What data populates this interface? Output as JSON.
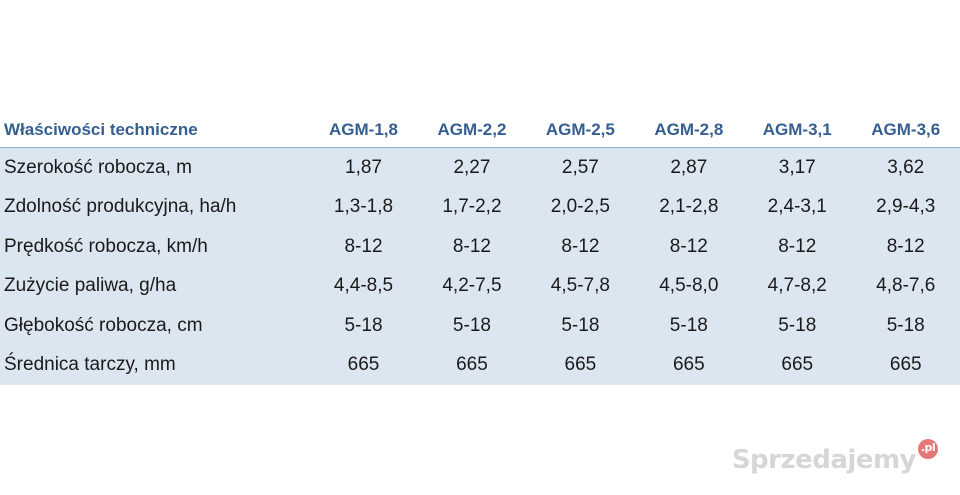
{
  "table": {
    "header": {
      "label": "Właściwości techniczne",
      "models": [
        "AGM-1,8",
        "AGM-2,2",
        "AGM-2,5",
        "AGM-2,8",
        "AGM-3,1",
        "AGM-3,6"
      ]
    },
    "rows": [
      {
        "label": "Szerokość robocza, m",
        "values": [
          "1,87",
          "2,27",
          "2,57",
          "2,87",
          "3,17",
          "3,62"
        ]
      },
      {
        "label": "Zdolność produkcyjna, ha/h",
        "values": [
          "1,3-1,8",
          "1,7-2,2",
          "2,0-2,5",
          "2,1-2,8",
          "2,4-3,1",
          "2,9-4,3"
        ]
      },
      {
        "label": "Prędkość robocza, km/h",
        "values": [
          "8-12",
          "8-12",
          "8-12",
          "8-12",
          "8-12",
          "8-12"
        ]
      },
      {
        "label": "Zużycie paliwa, g/ha",
        "values": [
          "4,4-8,5",
          "4,2-7,5",
          "4,5-7,8",
          "4,5-8,0",
          "4,7-8,2",
          "4,8-7,6"
        ]
      },
      {
        "label": "Głębokość robocza, cm",
        "values": [
          "5-18",
          "5-18",
          "5-18",
          "5-18",
          "5-18",
          "5-18"
        ]
      },
      {
        "label": "Średnica tarczy, mm",
        "values": [
          "665",
          "665",
          "665",
          "665",
          "665",
          "665"
        ]
      }
    ]
  },
  "watermark": {
    "text": "Sprzedajemy",
    "tld": ".pl"
  },
  "colors": {
    "header_text": "#365f91",
    "row_background": "#dce6f1",
    "rule": "#95b3d7"
  }
}
